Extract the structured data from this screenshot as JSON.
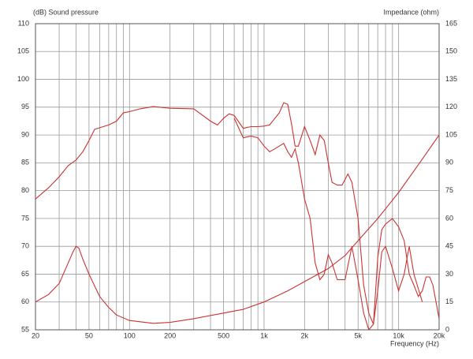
{
  "chart_data": {
    "type": "line",
    "ylabel": "(dB) Sound pressure",
    "y2label": "Impedance (ohm)",
    "xlabel": "Frequency (Hz)",
    "xscale": "log",
    "grid": true,
    "xlim": [
      20,
      20000
    ],
    "ylim": [
      55,
      110
    ],
    "y2lim": [
      0,
      165
    ],
    "xticks": [
      20,
      50,
      100,
      200,
      500,
      {
        "value": 1000,
        "label": "1k"
      },
      {
        "value": 2000,
        "label": "2k"
      },
      {
        "value": 5000,
        "label": "5k"
      },
      {
        "value": 10000,
        "label": "10k"
      },
      {
        "value": 20000,
        "label": "20k"
      }
    ],
    "xminorticks": [
      30,
      40,
      60,
      70,
      80,
      90,
      300,
      400,
      600,
      700,
      800,
      900,
      3000,
      4000,
      6000,
      7000,
      8000,
      9000
    ],
    "yticks": [
      55,
      60,
      65,
      70,
      75,
      80,
      85,
      90,
      95,
      100,
      105,
      110
    ],
    "y2ticks": [
      0,
      15,
      30,
      45,
      60,
      75,
      90,
      105,
      120,
      135,
      150,
      165
    ],
    "series": [
      {
        "color": "#cc3333",
        "x": [
          20,
          25,
          30,
          35,
          40,
          45,
          50,
          55,
          60,
          70,
          80,
          90,
          100,
          120,
          150,
          200,
          300,
          400,
          450,
          500,
          550,
          600,
          700,
          800,
          900,
          1000,
          1100,
          1300,
          1400,
          1500,
          1600,
          1700,
          1800,
          2000,
          2200,
          2400,
          2600,
          2800,
          3000,
          3200,
          3500,
          3800,
          4000,
          4200,
          4500,
          5000,
          5500,
          6000,
          6500,
          7000,
          7500,
          8000,
          9000,
          10000,
          11000,
          12000,
          13000,
          14000,
          15000,
          16000,
          17000,
          18000,
          20000
        ],
        "values": [
          78.5,
          80.5,
          82.5,
          84.5,
          85.5,
          87,
          89,
          91,
          91.3,
          91.8,
          92.5,
          94,
          94.2,
          94.7,
          95.1,
          94.8,
          94.7,
          92.5,
          91.8,
          93,
          93.8,
          93.5,
          91.2,
          91.5,
          91.5,
          91.6,
          91.8,
          94,
          95.8,
          95.5,
          92,
          88,
          88,
          91.5,
          89,
          86.5,
          90,
          89,
          85,
          81.5,
          81,
          81,
          82,
          83,
          81.5,
          75,
          63,
          58,
          56,
          68,
          73,
          74,
          75,
          73.5,
          71,
          65,
          63,
          61,
          62,
          64.5,
          64.5,
          63,
          57
        ]
      },
      {
        "color": "#cc3333",
        "x": [
          600,
          700,
          800,
          900,
          1000,
          1100,
          1200,
          1400,
          1500,
          1600,
          1700,
          1800,
          2000,
          2200,
          2400,
          2600,
          2800,
          3000,
          3200,
          3500,
          4000,
          4500,
          5000,
          5500,
          6000,
          6500,
          7000,
          7500,
          8000,
          9000,
          10000,
          11000,
          12000,
          13000,
          15000
        ],
        "values": [
          93,
          89.5,
          89.8,
          89.5,
          88,
          87,
          87.5,
          88.5,
          87,
          86,
          87.5,
          85,
          78.5,
          75,
          67,
          64,
          65,
          68.5,
          67,
          64,
          64,
          70,
          64,
          58,
          55,
          56,
          62,
          69,
          70,
          66,
          62,
          65,
          70,
          65,
          60
        ]
      },
      {
        "color": "#cc3333",
        "axis": "y2",
        "x": [
          20,
          25,
          30,
          35,
          38,
          40,
          42,
          45,
          50,
          60,
          70,
          80,
          100,
          150,
          200,
          300,
          500,
          700,
          1000,
          1500,
          2000,
          3000,
          4000,
          5000,
          7000,
          10000,
          15000,
          20000
        ],
        "values": [
          15,
          19,
          25,
          36,
          42,
          45,
          44,
          38,
          30,
          18,
          12,
          8,
          5,
          3.5,
          4,
          6,
          9,
          11,
          15,
          21,
          26,
          33,
          40,
          48,
          60,
          74,
          92,
          105
        ]
      }
    ]
  }
}
